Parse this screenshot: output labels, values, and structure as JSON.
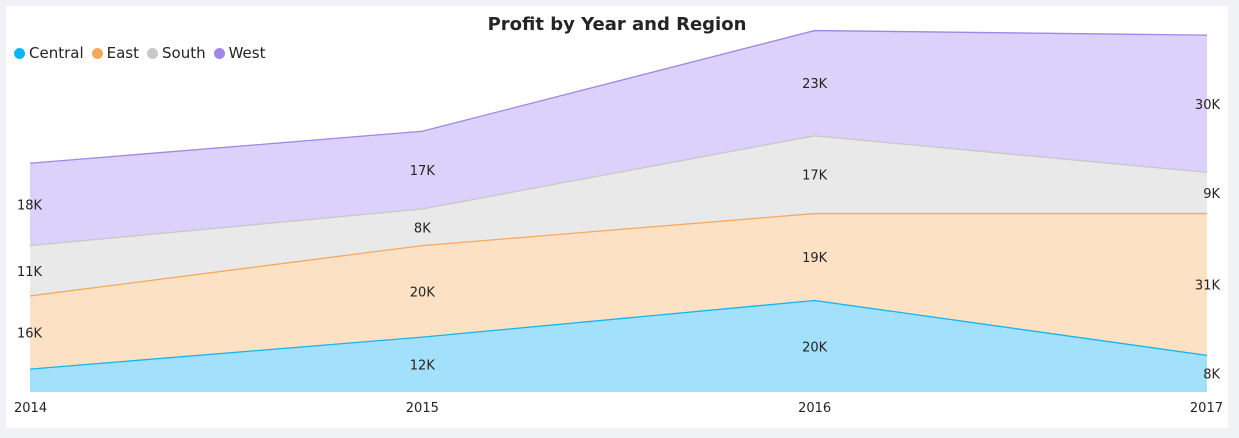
{
  "chart_data": {
    "type": "area",
    "stacked": true,
    "title": "Profit by Year and Region",
    "categories": [
      "2014",
      "2015",
      "2016",
      "2017"
    ],
    "series": [
      {
        "name": "Central",
        "color": "#12b5f3",
        "fill": "#a3e0fb",
        "values": [
          5,
          12,
          20,
          8
        ],
        "labels": [
          "",
          "12K",
          "20K",
          "8K"
        ]
      },
      {
        "name": "East",
        "color": "#f5a95c",
        "fill": "#fde1c4",
        "values": [
          16,
          20,
          19,
          31
        ],
        "labels": [
          "16K",
          "20K",
          "19K",
          "31K"
        ]
      },
      {
        "name": "South",
        "color": "#c8c8c8",
        "fill": "#e9e9e9",
        "values": [
          11,
          8,
          17,
          9
        ],
        "labels": [
          "11K",
          "8K",
          "17K",
          "9K"
        ]
      },
      {
        "name": "West",
        "color": "#9e87e6",
        "fill": "#dcd1fb",
        "values": [
          18,
          17,
          23,
          30
        ],
        "labels": [
          "18K",
          "17K",
          "23K",
          "30K"
        ]
      }
    ],
    "ylim": [
      0,
      80
    ],
    "grid": false,
    "legend": "top-left"
  }
}
